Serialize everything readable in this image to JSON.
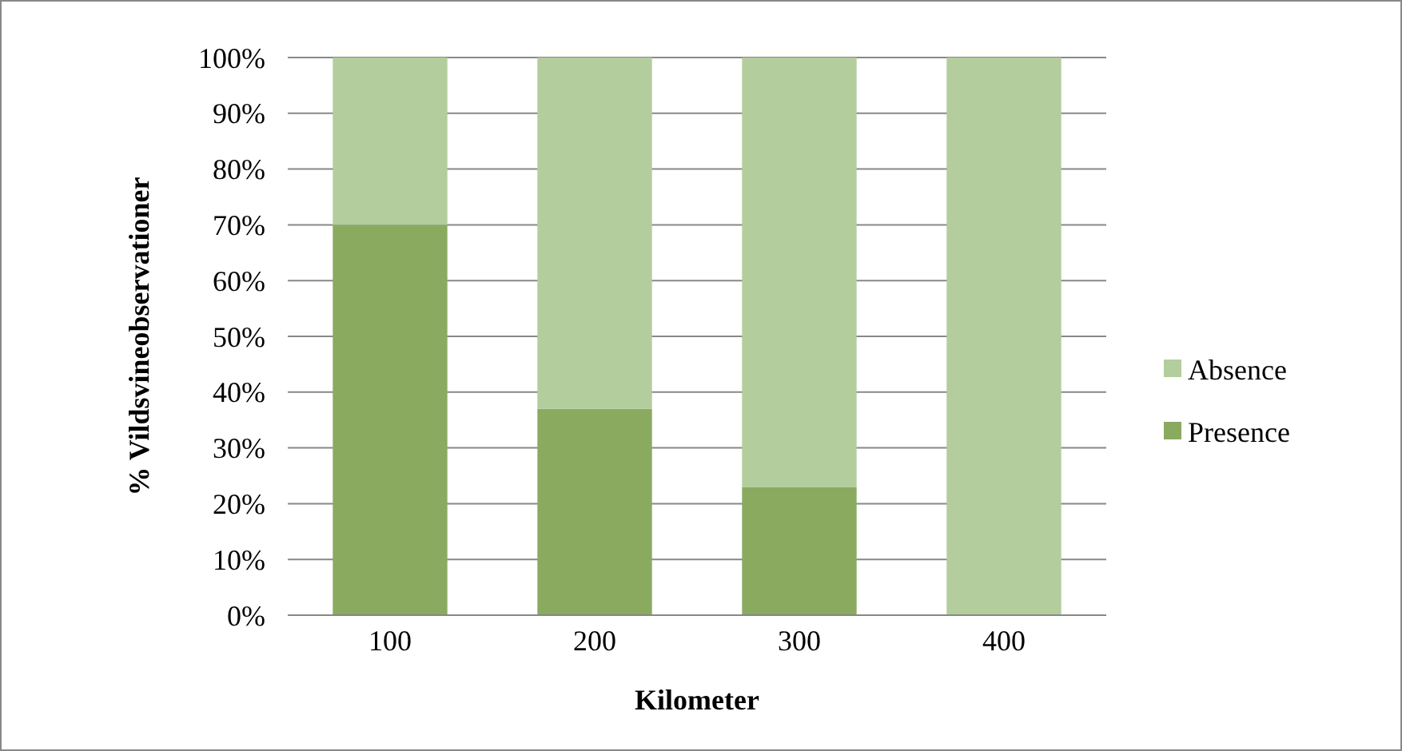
{
  "chart_data": {
    "type": "bar",
    "stacked": true,
    "xlabel": "Kilometer",
    "ylabel": "% Vildsvineobservationer",
    "categories": [
      "100",
      "200",
      "300",
      "400"
    ],
    "series": [
      {
        "name": "Presence",
        "color": "#8aaa60",
        "values": [
          70,
          37,
          23,
          0
        ]
      },
      {
        "name": "Absence",
        "color": "#b3cd9d",
        "values": [
          30,
          63,
          77,
          100
        ]
      }
    ],
    "ylim": [
      0,
      100
    ],
    "yticks": [
      {
        "value": 0,
        "label": "0%"
      },
      {
        "value": 10,
        "label": "10%"
      },
      {
        "value": 20,
        "label": "20%"
      },
      {
        "value": 30,
        "label": "30%"
      },
      {
        "value": 40,
        "label": "40%"
      },
      {
        "value": 50,
        "label": "50%"
      },
      {
        "value": 60,
        "label": "60%"
      },
      {
        "value": 70,
        "label": "70%"
      },
      {
        "value": 80,
        "label": "80%"
      },
      {
        "value": 90,
        "label": "90%"
      },
      {
        "value": 100,
        "label": "100%"
      }
    ],
    "grid": "y",
    "legend": "right"
  }
}
